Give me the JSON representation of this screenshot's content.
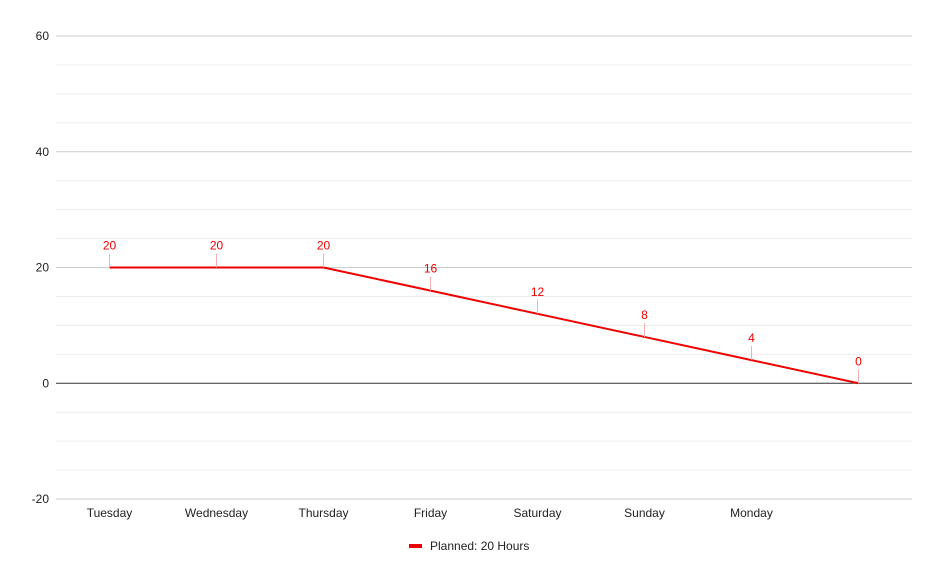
{
  "chart_data": {
    "type": "line",
    "categories": [
      "Tuesday",
      "Wednesday",
      "Thursday",
      "Friday",
      "Saturday",
      "Sunday",
      "Monday",
      ""
    ],
    "series": [
      {
        "name": "Planned: 20 Hours",
        "values": [
          20,
          20,
          20,
          16,
          12,
          8,
          4,
          0
        ],
        "color": "#ee0000"
      }
    ],
    "ylim": [
      -20,
      60
    ],
    "yticks": [
      -20,
      0,
      20,
      40,
      60
    ],
    "grid": true,
    "legend_position": "bottom"
  }
}
